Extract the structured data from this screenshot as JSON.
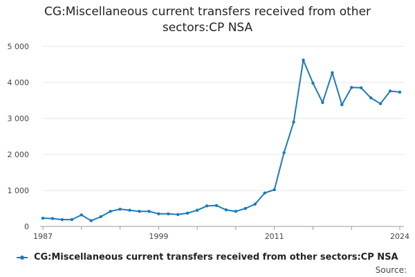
{
  "chart_data": {
    "type": "line",
    "title_lines": [
      "CG:Miscellaneous current transfers received from other",
      "sectors:CP NSA"
    ],
    "xlabel": "",
    "ylabel": "",
    "x_tick_labels": [
      "1987",
      "1999",
      "2011",
      "2024"
    ],
    "y_tick_labels": [
      "0",
      "1 000",
      "2 000",
      "3 000",
      "4 000",
      "5 000"
    ],
    "ylim": [
      0,
      5000
    ],
    "xlim": [
      1987,
      2024
    ],
    "grid": "horizontal",
    "legend_position": "bottom",
    "series": [
      {
        "name": "CG:Miscellaneous current transfers received from other sectors:CP NSA",
        "color": "#1a7ab9",
        "x": [
          1987,
          1988,
          1989,
          1990,
          1991,
          1992,
          1993,
          1994,
          1995,
          1996,
          1997,
          1998,
          1999,
          2000,
          2001,
          2002,
          2003,
          2004,
          2005,
          2006,
          2007,
          2008,
          2009,
          2010,
          2011,
          2012,
          2013,
          2014,
          2015,
          2016,
          2017,
          2018,
          2019,
          2020,
          2021,
          2022,
          2023,
          2024
        ],
        "values": [
          230,
          220,
          190,
          190,
          320,
          160,
          270,
          420,
          480,
          450,
          420,
          420,
          350,
          350,
          330,
          370,
          450,
          570,
          580,
          460,
          420,
          500,
          620,
          930,
          1020,
          2050,
          2900,
          4620,
          3980,
          3440,
          4270,
          3380,
          3860,
          3850,
          3570,
          3410,
          3760,
          3730
        ]
      }
    ]
  },
  "legend": {
    "label": "CG:Miscellaneous current transfers received from other sectors:CP NSA"
  },
  "source_label": "Source:"
}
